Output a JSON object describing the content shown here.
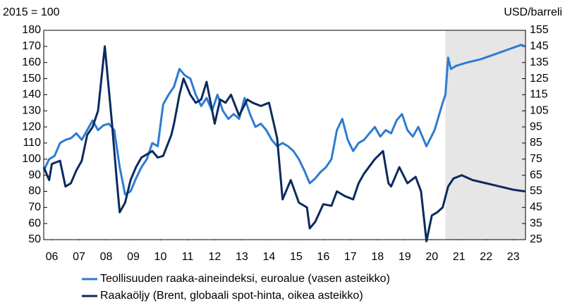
{
  "chart_data": {
    "type": "line",
    "y_label": "2015 = 100",
    "y2_label": "USD/barreli",
    "xlim": [
      2006.2,
      2023.95
    ],
    "xticks": [
      {
        "value": 2006.5,
        "label": "06"
      },
      {
        "value": 2007.5,
        "label": "07"
      },
      {
        "value": 2008.5,
        "label": "08"
      },
      {
        "value": 2009.5,
        "label": "09"
      },
      {
        "value": 2010.5,
        "label": "10"
      },
      {
        "value": 2011.5,
        "label": "11"
      },
      {
        "value": 2012.5,
        "label": "12"
      },
      {
        "value": 2013.5,
        "label": "13"
      },
      {
        "value": 2014.5,
        "label": "14"
      },
      {
        "value": 2015.5,
        "label": "15"
      },
      {
        "value": 2016.5,
        "label": "16"
      },
      {
        "value": 2017.5,
        "label": "17"
      },
      {
        "value": 2018.5,
        "label": "18"
      },
      {
        "value": 2019.5,
        "label": "19"
      },
      {
        "value": 2020.5,
        "label": "20"
      },
      {
        "value": 2021.5,
        "label": "21"
      },
      {
        "value": 2022.5,
        "label": "22"
      },
      {
        "value": 2023.5,
        "label": "23"
      }
    ],
    "ylim": [
      50,
      180
    ],
    "yticks": [
      50,
      60,
      70,
      80,
      90,
      100,
      110,
      120,
      130,
      140,
      150,
      160,
      170,
      180
    ],
    "y2lim": [
      25,
      155
    ],
    "y2ticks": [
      25,
      35,
      45,
      55,
      65,
      75,
      85,
      95,
      105,
      115,
      125,
      135,
      145,
      155
    ],
    "forecast_start": 2021,
    "series": [
      {
        "name": "Teollisuuden raaka-aineindeksi, euroalue (vasen asteikko)",
        "color": "#2d7bd1",
        "x": [
          2006.2,
          2006.4,
          2006.6,
          2006.8,
          2007.0,
          2007.2,
          2007.4,
          2007.6,
          2007.8,
          2008.0,
          2008.2,
          2008.4,
          2008.6,
          2008.8,
          2009.0,
          2009.2,
          2009.4,
          2009.6,
          2009.8,
          2010.0,
          2010.2,
          2010.4,
          2010.6,
          2010.8,
          2011.0,
          2011.2,
          2011.4,
          2011.6,
          2011.8,
          2012.0,
          2012.2,
          2012.4,
          2012.6,
          2012.8,
          2013.0,
          2013.2,
          2013.4,
          2013.6,
          2013.8,
          2014.0,
          2014.2,
          2014.4,
          2014.6,
          2014.8,
          2015.0,
          2015.2,
          2015.4,
          2015.6,
          2015.8,
          2016.0,
          2016.2,
          2016.4,
          2016.6,
          2016.8,
          2017.0,
          2017.2,
          2017.4,
          2017.6,
          2017.8,
          2018.0,
          2018.2,
          2018.4,
          2018.6,
          2018.8,
          2019.0,
          2019.2,
          2019.4,
          2019.6,
          2019.8,
          2020.0,
          2020.3,
          2020.6,
          2020.9,
          2021.0,
          2021.1,
          2021.2,
          2021.4,
          2021.8,
          2022.3,
          2022.8,
          2023.3,
          2023.8,
          2023.93
        ],
        "values": [
          93,
          100,
          102,
          110,
          112,
          113,
          116,
          112,
          118,
          124,
          118,
          121,
          122,
          118,
          95,
          78,
          80,
          88,
          95,
          100,
          110,
          108,
          134,
          140,
          145,
          156,
          152,
          150,
          140,
          133,
          138,
          130,
          140,
          130,
          125,
          128,
          125,
          138,
          128,
          120,
          122,
          118,
          112,
          108,
          110,
          108,
          105,
          100,
          93,
          85,
          88,
          92,
          95,
          100,
          118,
          125,
          112,
          105,
          110,
          112,
          116,
          120,
          114,
          118,
          116,
          124,
          128,
          118,
          114,
          120,
          108,
          118,
          135,
          140,
          163,
          156,
          158,
          160,
          162,
          165,
          168,
          171,
          170
        ]
      },
      {
        "name": "Raakaöljy (Brent, globaali spot-hinta, oikea asteikko)",
        "color": "#0b2a5e",
        "axis": "y2",
        "x": [
          2006.2,
          2006.4,
          2006.5,
          2006.8,
          2007.0,
          2007.2,
          2007.4,
          2007.6,
          2007.8,
          2008.0,
          2008.2,
          2008.45,
          2008.7,
          2008.9,
          2009.0,
          2009.2,
          2009.4,
          2009.6,
          2009.8,
          2010.0,
          2010.2,
          2010.4,
          2010.6,
          2010.9,
          2011.0,
          2011.2,
          2011.35,
          2011.6,
          2011.8,
          2012.0,
          2012.2,
          2012.5,
          2012.7,
          2012.9,
          2013.1,
          2013.4,
          2013.7,
          2013.9,
          2014.2,
          2014.5,
          2014.8,
          2015.0,
          2015.3,
          2015.6,
          2015.9,
          2016.0,
          2016.2,
          2016.5,
          2016.8,
          2017.0,
          2017.3,
          2017.6,
          2017.8,
          2018.0,
          2018.4,
          2018.7,
          2018.9,
          2019.0,
          2019.3,
          2019.6,
          2019.9,
          2020.1,
          2020.3,
          2020.5,
          2020.7,
          2020.9,
          2021.1,
          2021.3,
          2021.6,
          2022.0,
          2022.5,
          2023.0,
          2023.5,
          2023.93
        ],
        "values": [
          70,
          62,
          72,
          74,
          58,
          60,
          68,
          74,
          90,
          95,
          105,
          145,
          100,
          60,
          42,
          48,
          62,
          70,
          76,
          78,
          80,
          76,
          77,
          90,
          97,
          115,
          125,
          115,
          110,
          112,
          123,
          97,
          112,
          110,
          115,
          102,
          112,
          110,
          108,
          110,
          88,
          50,
          62,
          48,
          45,
          32,
          36,
          47,
          46,
          55,
          52,
          50,
          60,
          66,
          75,
          80,
          60,
          58,
          70,
          60,
          64,
          55,
          24,
          40,
          42,
          45,
          58,
          63,
          65,
          62,
          60,
          58,
          56,
          55
        ]
      }
    ]
  }
}
